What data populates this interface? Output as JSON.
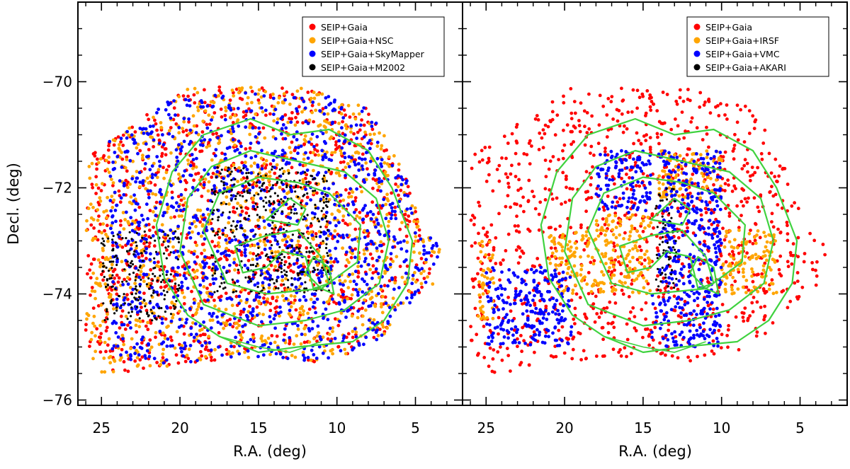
{
  "chart_data": [
    {
      "type": "scatter",
      "panel": "left",
      "xlabel": "R.A. (deg)",
      "ylabel": "Decl. (deg)",
      "xlim": [
        26.5,
        2.0
      ],
      "ylim": [
        -76.1,
        -68.5
      ],
      "x_ticks": [
        25,
        20,
        15,
        10,
        5
      ],
      "x_tick_labels": [
        "25",
        "20",
        "15",
        "10",
        "5"
      ],
      "y_ticks": [
        -70,
        -72,
        -74,
        -76
      ],
      "y_tick_labels": [
        "−70",
        "−72",
        "−74",
        "−76"
      ],
      "legend_position": "top-right",
      "series": [
        {
          "name": "SEIP+Gaia",
          "color": "#ff0000",
          "description_region": "underlying catalogue"
        },
        {
          "name": "SEIP+Gaia+NSC",
          "color": "#ffa500",
          "regions": [
            {
              "ra": [
                26,
                3
              ],
              "dec": [
                -75.5,
                -70.0
              ]
            }
          ]
        },
        {
          "name": "SEIP+Gaia+SkyMapper",
          "color": "#0000ff",
          "regions": [
            {
              "ra": [
                24.5,
                3
              ],
              "dec": [
                -75.3,
                -70.2
              ]
            }
          ]
        },
        {
          "name": "SEIP+Gaia+M2002",
          "color": "#000000",
          "regions": [
            {
              "ra": [
                18,
                10.5
              ],
              "dec": [
                -74.0,
                -71.6
              ]
            },
            {
              "ra": [
                25,
                20
              ],
              "dec": [
                -74.5,
                -72.8
              ]
            }
          ]
        }
      ],
      "contours": [
        [
          [
            17.5,
            -74.8
          ],
          [
            15.0,
            -75.1
          ],
          [
            12.5,
            -75.0
          ],
          [
            9.0,
            -74.9
          ],
          [
            7.0,
            -74.5
          ],
          [
            5.5,
            -73.8
          ],
          [
            5.2,
            -73.0
          ],
          [
            6.5,
            -72.0
          ],
          [
            8.0,
            -71.3
          ],
          [
            10.5,
            -70.9
          ],
          [
            13.0,
            -71.0
          ],
          [
            15.5,
            -70.7
          ],
          [
            18.5,
            -71.0
          ],
          [
            20.5,
            -71.7
          ],
          [
            21.5,
            -72.7
          ],
          [
            21.0,
            -73.7
          ],
          [
            19.5,
            -74.4
          ],
          [
            17.5,
            -74.8
          ]
        ],
        [
          [
            18.5,
            -74.2
          ],
          [
            15.0,
            -74.6
          ],
          [
            12.0,
            -74.5
          ],
          [
            9.5,
            -74.3
          ],
          [
            7.3,
            -73.8
          ],
          [
            6.7,
            -73.0
          ],
          [
            7.5,
            -72.2
          ],
          [
            9.5,
            -71.7
          ],
          [
            12.5,
            -71.5
          ],
          [
            15.5,
            -71.3
          ],
          [
            18.0,
            -71.6
          ],
          [
            19.5,
            -72.2
          ],
          [
            20.0,
            -73.2
          ],
          [
            18.5,
            -74.2
          ]
        ],
        [
          [
            17.0,
            -73.8
          ],
          [
            14.5,
            -74.0
          ],
          [
            11.0,
            -73.9
          ],
          [
            8.7,
            -73.4
          ],
          [
            8.5,
            -72.7
          ],
          [
            10.5,
            -72.1
          ],
          [
            12.5,
            -71.9
          ],
          [
            15.0,
            -71.8
          ],
          [
            17.5,
            -72.1
          ],
          [
            18.5,
            -72.8
          ],
          [
            17.0,
            -73.8
          ]
        ],
        [
          [
            16.5,
            -73.1
          ],
          [
            14.5,
            -72.9
          ],
          [
            12.5,
            -72.8
          ],
          [
            11.0,
            -73.3
          ],
          [
            10.5,
            -73.8
          ],
          [
            11.5,
            -73.9
          ],
          [
            12.0,
            -73.3
          ],
          [
            13.5,
            -73.2
          ],
          [
            14.5,
            -73.5
          ],
          [
            16.0,
            -73.6
          ],
          [
            16.5,
            -73.1
          ]
        ],
        [
          [
            14.5,
            -72.6
          ],
          [
            13.0,
            -72.2
          ],
          [
            12.0,
            -72.4
          ],
          [
            12.5,
            -72.7
          ],
          [
            14.5,
            -72.6
          ]
        ],
        [
          [
            12.0,
            -73.6
          ],
          [
            11.0,
            -73.9
          ],
          [
            10.2,
            -74.0
          ],
          [
            10.5,
            -73.5
          ],
          [
            11.5,
            -73.3
          ],
          [
            12.0,
            -73.6
          ]
        ]
      ],
      "outline": [
        [
          17.5,
          -74.8
        ],
        [
          15.0,
          -75.0
        ],
        [
          13.0,
          -75.1
        ],
        [
          11.0,
          -74.9
        ]
      ]
    },
    {
      "type": "scatter",
      "panel": "right",
      "xlabel": "R.A. (deg)",
      "ylabel": "",
      "xlim": [
        26.5,
        2.0
      ],
      "ylim": [
        -76.1,
        -68.5
      ],
      "x_ticks": [
        25,
        20,
        15,
        10,
        5
      ],
      "x_tick_labels": [
        "25",
        "20",
        "15",
        "10",
        "5"
      ],
      "y_ticks": [
        -70,
        -72,
        -74,
        -76
      ],
      "legend_position": "top-right",
      "series": [
        {
          "name": "SEIP+Gaia",
          "color": "#ff0000",
          "regions": [
            {
              "ra": [
                26,
                3
              ],
              "dec": [
                -75.5,
                -70.0
              ]
            }
          ]
        },
        {
          "name": "SEIP+Gaia+IRSF",
          "color": "#ffa500",
          "regions": [
            {
              "ra": [
                18,
                14.5
              ],
              "dec": [
                -74.0,
                -72.5
              ]
            },
            {
              "ra": [
                21,
                18
              ],
              "dec": [
                -74.0,
                -72.8
              ]
            },
            {
              "ra": [
                14,
                10
              ],
              "dec": [
                -72.2,
                -71.3
              ]
            },
            {
              "ra": [
                10,
                6.5
              ],
              "dec": [
                -74.0,
                -72.8
              ]
            },
            {
              "ra": [
                25.5,
                24.5
              ],
              "dec": [
                -74.5,
                -73.0
              ]
            }
          ]
        },
        {
          "name": "SEIP+Gaia+VMC",
          "color": "#0000ff",
          "regions": [
            {
              "ra": [
                18,
                14.5
              ],
              "dec": [
                -72.5,
                -71.3
              ]
            },
            {
              "ra": [
                14,
                10
              ],
              "dec": [
                -72.5,
                -71.3
              ]
            },
            {
              "ra": [
                14.0,
                10.0
              ],
              "dec": [
                -74.0,
                -72.6
              ]
            },
            {
              "ra": [
                14.5,
                10.0
              ],
              "dec": [
                -75.0,
                -74.0
              ]
            },
            {
              "ra": [
                25,
                19.5
              ],
              "dec": [
                -75.0,
                -73.5
              ]
            }
          ]
        },
        {
          "name": "SEIP+Gaia+AKARI",
          "color": "#000000",
          "regions": [
            {
              "ra": [
                14.2,
                12.8
              ],
              "dec": [
                -74.0,
                -72.0
              ]
            }
          ]
        }
      ]
    }
  ]
}
